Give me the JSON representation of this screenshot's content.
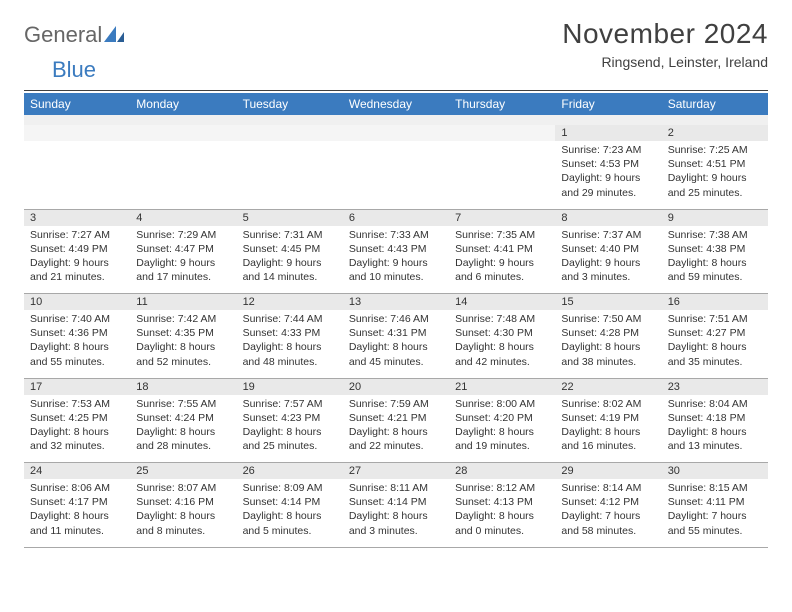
{
  "logo": {
    "word1": "General",
    "word2": "Blue"
  },
  "title": "November 2024",
  "subtitle": "Ringsend, Leinster, Ireland",
  "colors": {
    "header_bg": "#3b7bbf",
    "header_text": "#ffffff",
    "daynum_bg": "#e9e9e9",
    "spacer_bg": "#f0f0f0",
    "border": "#a8a8a8",
    "text": "#333333",
    "title_text": "#404040"
  },
  "dayNames": [
    "Sunday",
    "Monday",
    "Tuesday",
    "Wednesday",
    "Thursday",
    "Friday",
    "Saturday"
  ],
  "weeks": [
    [
      null,
      null,
      null,
      null,
      null,
      {
        "n": "1",
        "sunrise": "7:23 AM",
        "sunset": "4:53 PM",
        "daylight": "9 hours and 29 minutes."
      },
      {
        "n": "2",
        "sunrise": "7:25 AM",
        "sunset": "4:51 PM",
        "daylight": "9 hours and 25 minutes."
      }
    ],
    [
      {
        "n": "3",
        "sunrise": "7:27 AM",
        "sunset": "4:49 PM",
        "daylight": "9 hours and 21 minutes."
      },
      {
        "n": "4",
        "sunrise": "7:29 AM",
        "sunset": "4:47 PM",
        "daylight": "9 hours and 17 minutes."
      },
      {
        "n": "5",
        "sunrise": "7:31 AM",
        "sunset": "4:45 PM",
        "daylight": "9 hours and 14 minutes."
      },
      {
        "n": "6",
        "sunrise": "7:33 AM",
        "sunset": "4:43 PM",
        "daylight": "9 hours and 10 minutes."
      },
      {
        "n": "7",
        "sunrise": "7:35 AM",
        "sunset": "4:41 PM",
        "daylight": "9 hours and 6 minutes."
      },
      {
        "n": "8",
        "sunrise": "7:37 AM",
        "sunset": "4:40 PM",
        "daylight": "9 hours and 3 minutes."
      },
      {
        "n": "9",
        "sunrise": "7:38 AM",
        "sunset": "4:38 PM",
        "daylight": "8 hours and 59 minutes."
      }
    ],
    [
      {
        "n": "10",
        "sunrise": "7:40 AM",
        "sunset": "4:36 PM",
        "daylight": "8 hours and 55 minutes."
      },
      {
        "n": "11",
        "sunrise": "7:42 AM",
        "sunset": "4:35 PM",
        "daylight": "8 hours and 52 minutes."
      },
      {
        "n": "12",
        "sunrise": "7:44 AM",
        "sunset": "4:33 PM",
        "daylight": "8 hours and 48 minutes."
      },
      {
        "n": "13",
        "sunrise": "7:46 AM",
        "sunset": "4:31 PM",
        "daylight": "8 hours and 45 minutes."
      },
      {
        "n": "14",
        "sunrise": "7:48 AM",
        "sunset": "4:30 PM",
        "daylight": "8 hours and 42 minutes."
      },
      {
        "n": "15",
        "sunrise": "7:50 AM",
        "sunset": "4:28 PM",
        "daylight": "8 hours and 38 minutes."
      },
      {
        "n": "16",
        "sunrise": "7:51 AM",
        "sunset": "4:27 PM",
        "daylight": "8 hours and 35 minutes."
      }
    ],
    [
      {
        "n": "17",
        "sunrise": "7:53 AM",
        "sunset": "4:25 PM",
        "daylight": "8 hours and 32 minutes."
      },
      {
        "n": "18",
        "sunrise": "7:55 AM",
        "sunset": "4:24 PM",
        "daylight": "8 hours and 28 minutes."
      },
      {
        "n": "19",
        "sunrise": "7:57 AM",
        "sunset": "4:23 PM",
        "daylight": "8 hours and 25 minutes."
      },
      {
        "n": "20",
        "sunrise": "7:59 AM",
        "sunset": "4:21 PM",
        "daylight": "8 hours and 22 minutes."
      },
      {
        "n": "21",
        "sunrise": "8:00 AM",
        "sunset": "4:20 PM",
        "daylight": "8 hours and 19 minutes."
      },
      {
        "n": "22",
        "sunrise": "8:02 AM",
        "sunset": "4:19 PM",
        "daylight": "8 hours and 16 minutes."
      },
      {
        "n": "23",
        "sunrise": "8:04 AM",
        "sunset": "4:18 PM",
        "daylight": "8 hours and 13 minutes."
      }
    ],
    [
      {
        "n": "24",
        "sunrise": "8:06 AM",
        "sunset": "4:17 PM",
        "daylight": "8 hours and 11 minutes."
      },
      {
        "n": "25",
        "sunrise": "8:07 AM",
        "sunset": "4:16 PM",
        "daylight": "8 hours and 8 minutes."
      },
      {
        "n": "26",
        "sunrise": "8:09 AM",
        "sunset": "4:14 PM",
        "daylight": "8 hours and 5 minutes."
      },
      {
        "n": "27",
        "sunrise": "8:11 AM",
        "sunset": "4:14 PM",
        "daylight": "8 hours and 3 minutes."
      },
      {
        "n": "28",
        "sunrise": "8:12 AM",
        "sunset": "4:13 PM",
        "daylight": "8 hours and 0 minutes."
      },
      {
        "n": "29",
        "sunrise": "8:14 AM",
        "sunset": "4:12 PM",
        "daylight": "7 hours and 58 minutes."
      },
      {
        "n": "30",
        "sunrise": "8:15 AM",
        "sunset": "4:11 PM",
        "daylight": "7 hours and 55 minutes."
      }
    ]
  ],
  "labels": {
    "sunrise": "Sunrise:",
    "sunset": "Sunset:",
    "daylight": "Daylight:"
  }
}
